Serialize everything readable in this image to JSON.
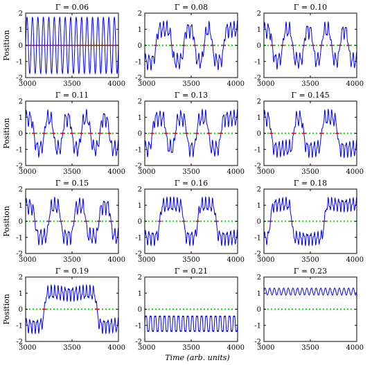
{
  "figure": {
    "xlabel": "Time (arb. units)",
    "ylabel": "Position"
  },
  "chart_data": {
    "type": "line",
    "xlim": [
      3000,
      4000
    ],
    "ylim": [
      -2,
      2
    ],
    "xticks": [
      3000,
      3500,
      4000
    ],
    "yticks": [
      -2,
      -1,
      0,
      1,
      2
    ],
    "grid": false,
    "colors": {
      "signal": "#0000ff",
      "reference": "#00dd00",
      "marker": "#dd0000"
    },
    "panels": [
      {
        "title": "Γ = 0.06",
        "gamma": 0.06,
        "regime": "periodic",
        "amp": 1.75,
        "center": 0,
        "cycles": 17,
        "ripple": 0
      },
      {
        "title": "Γ = 0.08",
        "gamma": 0.08,
        "regime": "switching",
        "amp": 0.45,
        "center": 0,
        "well": 1.0,
        "levels": [
          -1,
          1,
          -1,
          1,
          -1,
          1,
          -1,
          1
        ],
        "breaks": [
          3000,
          3120,
          3290,
          3420,
          3540,
          3640,
          3730,
          3850,
          4000
        ]
      },
      {
        "title": "Γ = 0.10",
        "gamma": 0.1,
        "regime": "switching",
        "amp": 0.45,
        "center": 0,
        "well": 0.95,
        "levels": [
          1,
          -1,
          1,
          -1,
          1,
          -1,
          1,
          -1,
          1,
          -1
        ],
        "breaks": [
          3000,
          3090,
          3200,
          3310,
          3430,
          3530,
          3620,
          3730,
          3820,
          3910,
          4000
        ]
      },
      {
        "title": "Γ = 0.11",
        "gamma": 0.11,
        "regime": "switching",
        "amp": 0.45,
        "center": 0,
        "well": 0.95,
        "levels": [
          1,
          -1,
          1,
          -1,
          1,
          -1,
          1,
          -1,
          1,
          -1
        ],
        "breaks": [
          3000,
          3090,
          3200,
          3300,
          3400,
          3500,
          3600,
          3700,
          3800,
          3900,
          4000
        ]
      },
      {
        "title": "Γ = 0.13",
        "gamma": 0.13,
        "regime": "switching",
        "amp": 0.45,
        "center": 0,
        "well": 0.95,
        "levels": [
          -1,
          1,
          -1,
          1,
          -1,
          1,
          -1,
          1
        ],
        "breaks": [
          3000,
          3080,
          3230,
          3330,
          3450,
          3560,
          3690,
          3820,
          4000
        ]
      },
      {
        "title": "Γ = 0.145",
        "gamma": 0.145,
        "regime": "switching",
        "amp": 0.45,
        "center": 0,
        "well": 0.95,
        "levels": [
          1,
          -1,
          1,
          -1,
          1,
          -1
        ],
        "breaks": [
          3000,
          3080,
          3320,
          3430,
          3620,
          3790,
          4000
        ]
      },
      {
        "title": "Γ = 0.15",
        "gamma": 0.15,
        "regime": "switching",
        "amp": 0.45,
        "center": 0,
        "well": 0.95,
        "levels": [
          1,
          -1,
          1,
          -1,
          1,
          -1,
          1,
          -1
        ],
        "breaks": [
          3000,
          3100,
          3250,
          3380,
          3520,
          3650,
          3790,
          3920,
          4000
        ]
      },
      {
        "title": "Γ = 0.16",
        "gamma": 0.16,
        "regime": "switching",
        "amp": 0.4,
        "center": 0,
        "well": 1.0,
        "levels": [
          -1,
          1,
          -1,
          1,
          -1
        ],
        "breaks": [
          3000,
          3160,
          3420,
          3570,
          3770,
          4000
        ]
      },
      {
        "title": "Γ = 0.18",
        "gamma": 0.18,
        "regime": "switching",
        "amp": 0.35,
        "center": 0,
        "well": 1.05,
        "levels": [
          -1,
          1,
          -1,
          1
        ],
        "breaks": [
          3000,
          3070,
          3300,
          3650,
          4000
        ]
      },
      {
        "title": "Γ = 0.19",
        "gamma": 0.19,
        "regime": "switching",
        "amp": 0.4,
        "center": 0,
        "well": 1.0,
        "levels": [
          -1,
          1,
          -1
        ],
        "breaks": [
          3000,
          3200,
          3770,
          4000
        ]
      },
      {
        "title": "Γ = 0.21",
        "gamma": 0.21,
        "regime": "periodic",
        "amp": 0.55,
        "center": -0.9,
        "cycles": 20,
        "ripple": 0.12
      },
      {
        "title": "Γ = 0.23",
        "gamma": 0.23,
        "regime": "periodic",
        "amp": 0.22,
        "center": 1.1,
        "cycles": 20,
        "ripple": 0
      }
    ]
  }
}
